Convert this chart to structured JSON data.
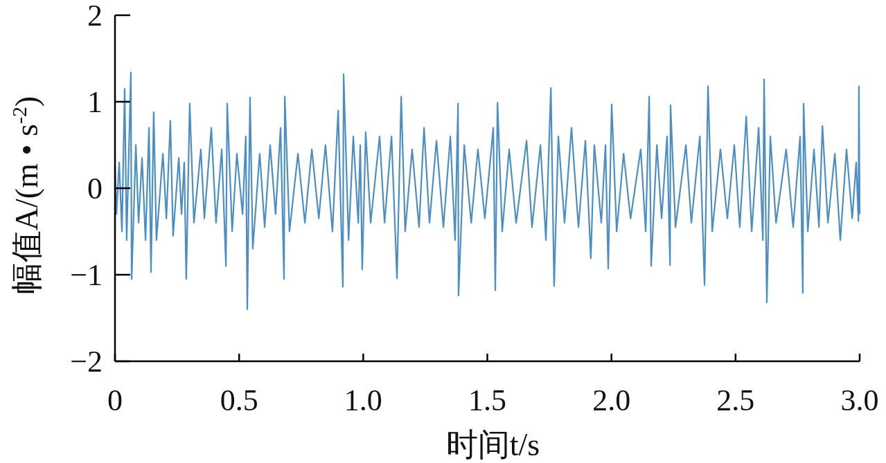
{
  "chart_data": {
    "type": "line",
    "xlabel": "时间t/s",
    "ylabel": "幅值A/(m • s$^{-2}$)",
    "xlim": [
      0,
      3
    ],
    "ylim": [
      -2,
      2
    ],
    "xticks": [
      0,
      0.5,
      {
        "value": 1,
        "label": "1.0"
      },
      1.5,
      {
        "value": 2,
        "label": "2.0"
      },
      2.5,
      {
        "value": 3,
        "label": "3.0"
      }
    ],
    "yticks": [
      {
        "value": -2,
        "label": "−2"
      },
      {
        "value": -1,
        "label": "−1"
      },
      0,
      1,
      2
    ],
    "grid": false,
    "marker": "none",
    "line_style": "solid",
    "series": [
      {
        "color": "#4a8ec4",
        "x": [
          0.0,
          0.006,
          0.017,
          0.028,
          0.039,
          0.047,
          0.064,
          0.067,
          0.084,
          0.095,
          0.109,
          0.123,
          0.137,
          0.145,
          0.156,
          0.167,
          0.193,
          0.207,
          0.223,
          0.234,
          0.257,
          0.268,
          0.279,
          0.287,
          0.301,
          0.318,
          0.346,
          0.36,
          0.388,
          0.407,
          0.43,
          0.447,
          0.452,
          0.472,
          0.491,
          0.514,
          0.527,
          0.533,
          0.544,
          0.555,
          0.583,
          0.603,
          0.625,
          0.647,
          0.667,
          0.681,
          0.684,
          0.703,
          0.737,
          0.765,
          0.793,
          0.821,
          0.848,
          0.876,
          0.899,
          0.918,
          0.921,
          0.941,
          0.96,
          0.98,
          0.988,
          0.996,
          1.01,
          1.03,
          1.066,
          1.086,
          1.114,
          1.136,
          1.153,
          1.169,
          1.197,
          1.225,
          1.245,
          1.267,
          1.295,
          1.323,
          1.351,
          1.37,
          1.382,
          1.384,
          1.407,
          1.435,
          1.462,
          1.49,
          1.524,
          1.532,
          1.541,
          1.56,
          1.588,
          1.616,
          1.658,
          1.68,
          1.714,
          1.736,
          1.756,
          1.769,
          1.786,
          1.811,
          1.839,
          1.867,
          1.895,
          1.917,
          1.931,
          1.959,
          1.976,
          1.987,
          2.001,
          2.021,
          2.049,
          2.077,
          2.118,
          2.138,
          2.152,
          2.16,
          2.183,
          2.202,
          2.224,
          2.236,
          2.238,
          2.258,
          2.3,
          2.322,
          2.356,
          2.375,
          2.389,
          2.406,
          2.439,
          2.467,
          2.495,
          2.517,
          2.543,
          2.565,
          2.593,
          2.61,
          2.615,
          2.626,
          2.64,
          2.663,
          2.704,
          2.732,
          2.76,
          2.771,
          2.774,
          2.791,
          2.816,
          2.836,
          2.85,
          2.872,
          2.9,
          2.922,
          2.947,
          2.97,
          2.986,
          2.995,
          2.997,
          3.0
        ],
        "values": [
          0.25,
          -0.3,
          0.3,
          -0.5,
          1.15,
          -0.6,
          1.34,
          -1.05,
          0.5,
          -0.4,
          0.35,
          -0.6,
          0.7,
          -0.97,
          0.88,
          -0.6,
          0.4,
          -0.35,
          0.78,
          -0.55,
          0.35,
          -0.3,
          0.3,
          -1.05,
          0.98,
          -0.4,
          0.45,
          -0.35,
          0.7,
          -0.4,
          0.45,
          -0.9,
          0.98,
          -0.5,
          0.4,
          -0.3,
          0.6,
          -1.4,
          1.05,
          -0.7,
          0.4,
          -0.45,
          0.5,
          -0.3,
          0.7,
          -1.05,
          1.06,
          -0.5,
          0.4,
          -0.4,
          0.45,
          -0.35,
          0.5,
          -0.5,
          0.9,
          -1.14,
          1.32,
          -0.6,
          0.6,
          -0.4,
          0.5,
          -0.94,
          0.65,
          -0.4,
          0.6,
          -0.4,
          0.6,
          -1.04,
          1.06,
          -0.5,
          0.45,
          -0.45,
          0.7,
          -0.4,
          0.55,
          -0.45,
          0.6,
          -0.6,
          0.98,
          -1.24,
          0.5,
          -0.4,
          0.45,
          -0.35,
          0.7,
          -1.18,
          0.99,
          -0.5,
          0.45,
          -0.4,
          0.55,
          -0.45,
          0.5,
          -0.6,
          1.16,
          -1.13,
          0.6,
          -0.4,
          0.7,
          -0.45,
          0.55,
          -0.81,
          0.5,
          -0.4,
          0.5,
          -0.93,
          0.97,
          -0.5,
          0.4,
          -0.35,
          0.45,
          -0.5,
          1.06,
          -0.9,
          0.5,
          -0.35,
          0.6,
          -0.89,
          0.96,
          -0.45,
          0.5,
          -0.4,
          0.6,
          -1.12,
          1.18,
          -0.5,
          0.45,
          -0.35,
          0.5,
          -0.45,
          0.83,
          -0.5,
          0.7,
          -0.6,
          1.26,
          -1.32,
          0.6,
          -0.4,
          0.45,
          -0.45,
          0.6,
          -1.21,
          0.98,
          -0.5,
          0.45,
          -0.45,
          0.72,
          -0.4,
          0.4,
          -0.6,
          0.45,
          -0.35,
          0.3,
          -0.38,
          1.18,
          -0.3
        ]
      }
    ]
  }
}
